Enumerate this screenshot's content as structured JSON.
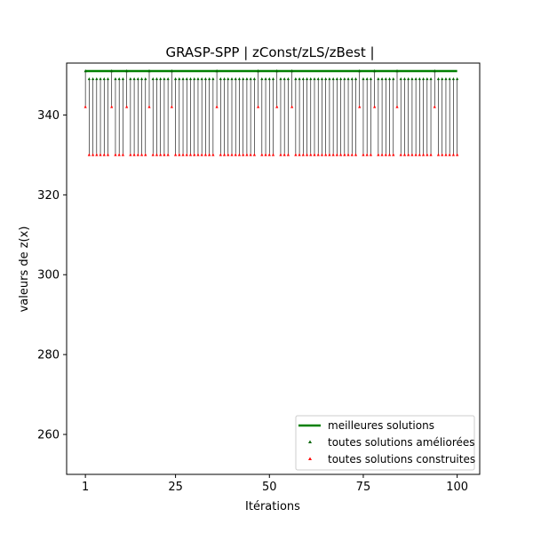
{
  "chart_data": {
    "type": "line",
    "title": "GRASP-SPP | zConst/zLS/zBest |",
    "xlabel": "Itérations",
    "ylabel": "valeurs de z(x)",
    "xlim": [
      -4,
      106
    ],
    "ylim": [
      250,
      353
    ],
    "xticks": [
      1,
      25,
      50,
      75,
      100
    ],
    "yticks": [
      260,
      280,
      300,
      320,
      340
    ],
    "legend_position": "lower right",
    "series": [
      {
        "name": "meilleures solutions",
        "kind": "line",
        "color": "#008000",
        "x_range": [
          1,
          100
        ],
        "y": 351
      },
      {
        "name": "toutes solutions améliorées",
        "kind": "scatter",
        "color": "#006400",
        "marker": "triangle"
      },
      {
        "name": "toutes solutions construites",
        "kind": "scatter",
        "color": "#ff0000",
        "marker": "triangle"
      }
    ],
    "iterations": {
      "x_start": 1,
      "x_end": 100,
      "peak_iterations": [
        1,
        8,
        12,
        18,
        24,
        36,
        47,
        52,
        56,
        74,
        78,
        84,
        94
      ],
      "constructed_peak": 342,
      "constructed_default": 330,
      "improved_peak": 351,
      "improved_default": 349
    }
  }
}
